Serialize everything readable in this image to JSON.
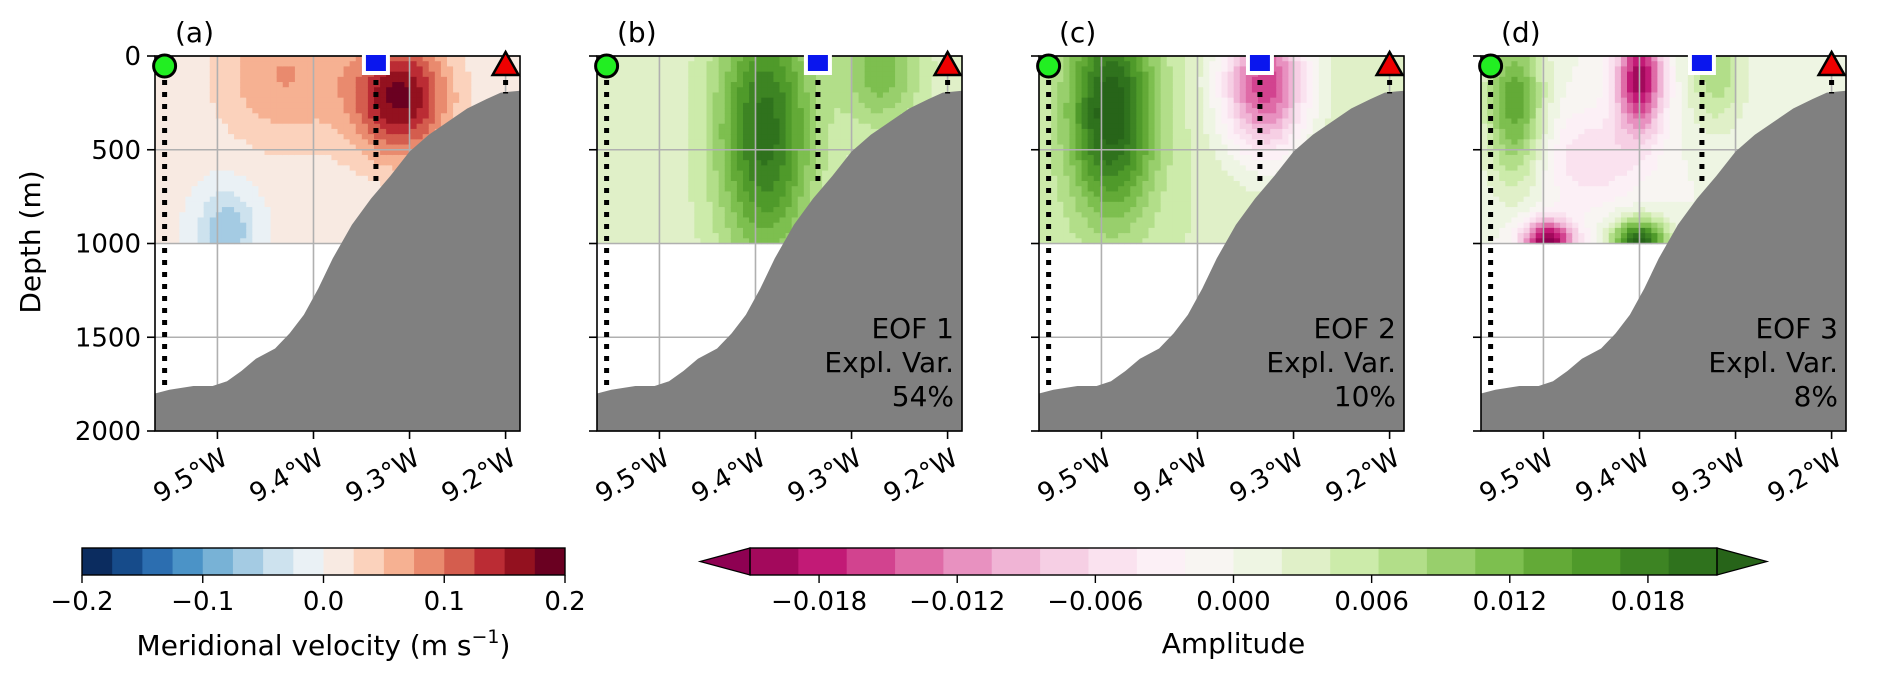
{
  "chart_data": {
    "type": "heatmap",
    "y_axis": {
      "label": "Depth (m)",
      "lim": [
        0,
        2000
      ],
      "inverted": true,
      "ticks": [
        0,
        500,
        1000,
        1500,
        2000
      ],
      "tick_labels": [
        "0",
        "500",
        "1000",
        "1500",
        "2000"
      ]
    },
    "x_axis": {
      "lim_lon": [
        -9.565,
        -9.185
      ],
      "ticks_lon": [
        -9.5,
        -9.4,
        -9.3,
        -9.2
      ],
      "tick_labels": [
        "9.5°W",
        "9.4°W",
        "9.3°W",
        "9.2°W"
      ]
    },
    "grid": true,
    "data_depth_max": 1000,
    "markers": [
      {
        "lon": -9.555,
        "depth": 0,
        "shape": "circle",
        "color": "#22ee22",
        "line_bottom": 1760
      },
      {
        "lon": -9.335,
        "depth": 0,
        "shape": "square",
        "color": "#0a16ee",
        "line_bottom": 700
      },
      {
        "lon": -9.2,
        "depth": 0,
        "shape": "triangle",
        "color": "#ee0000",
        "line_bottom": 200
      }
    ],
    "bathymetry": [
      [
        -9.565,
        1800
      ],
      [
        -9.55,
        1780
      ],
      [
        -9.525,
        1760
      ],
      [
        -9.505,
        1760
      ],
      [
        -9.49,
        1735
      ],
      [
        -9.475,
        1680
      ],
      [
        -9.46,
        1615
      ],
      [
        -9.44,
        1560
      ],
      [
        -9.425,
        1480
      ],
      [
        -9.41,
        1380
      ],
      [
        -9.395,
        1240
      ],
      [
        -9.38,
        1080
      ],
      [
        -9.36,
        900
      ],
      [
        -9.34,
        760
      ],
      [
        -9.32,
        640
      ],
      [
        -9.3,
        510
      ],
      [
        -9.28,
        420
      ],
      [
        -9.26,
        350
      ],
      [
        -9.24,
        280
      ],
      [
        -9.22,
        230
      ],
      [
        -9.205,
        195
      ],
      [
        -9.185,
        185
      ]
    ],
    "panels": [
      {
        "label": "(a)",
        "field": "velocity",
        "ridges": [
          {
            "lon": -9.31,
            "depth": 220,
            "amp": 0.175,
            "sx": 0.05,
            "sy": 320
          },
          {
            "lon": -9.43,
            "depth": 100,
            "amp": 0.07,
            "sx": 0.07,
            "sy": 380
          },
          {
            "lon": -9.49,
            "depth": 940,
            "amp": -0.08,
            "sx": 0.03,
            "sy": 230
          }
        ],
        "base": 0.006
      },
      {
        "label": "(b)",
        "field": "eof",
        "title": "EOF 1",
        "var_label": "Expl. Var.",
        "var_value": "54%",
        "ridges": [
          {
            "lon": -9.39,
            "depth": 400,
            "amp": 0.017,
            "sx": 0.05,
            "sy": 700
          },
          {
            "lon": -9.27,
            "depth": 80,
            "amp": 0.009,
            "sx": 0.04,
            "sy": 300
          }
        ],
        "base": 0.003
      },
      {
        "label": "(c)",
        "field": "eof",
        "title": "EOF 2",
        "var_label": "Expl. Var.",
        "var_value": "10%",
        "ridges": [
          {
            "lon": -9.49,
            "depth": 300,
            "amp": 0.019,
            "sx": 0.045,
            "sy": 550
          },
          {
            "lon": -9.33,
            "depth": 150,
            "amp": -0.02,
            "sx": 0.045,
            "sy": 380
          }
        ],
        "base": 0.004
      },
      {
        "label": "(d)",
        "field": "eof",
        "title": "EOF 3",
        "var_label": "Expl. Var.",
        "var_value": "8%",
        "ridges": [
          {
            "lon": -9.53,
            "depth": 250,
            "amp": 0.014,
            "sx": 0.03,
            "sy": 420
          },
          {
            "lon": -9.4,
            "depth": 120,
            "amp": -0.02,
            "sx": 0.025,
            "sy": 300
          },
          {
            "lon": -9.45,
            "depth": 550,
            "amp": -0.006,
            "sx": 0.05,
            "sy": 250
          },
          {
            "lon": -9.495,
            "depth": 990,
            "amp": -0.022,
            "sx": 0.028,
            "sy": 120
          },
          {
            "lon": -9.4,
            "depth": 990,
            "amp": 0.022,
            "sx": 0.028,
            "sy": 120
          },
          {
            "lon": -9.32,
            "depth": 80,
            "amp": 0.008,
            "sx": 0.03,
            "sy": 300
          }
        ],
        "base": 0.0
      }
    ],
    "colorbars": [
      {
        "id": "velocity",
        "label_main": "Meridional velocity (m s",
        "label_sup": "−1",
        "label_end": ")",
        "range": [
          -0.2,
          0.2
        ],
        "levels": 16,
        "extend": "neither",
        "ticks": [
          -0.2,
          -0.1,
          0.0,
          0.1,
          0.2
        ],
        "tick_labels": [
          "−0.2",
          "−0.1",
          "0.0",
          "0.1",
          "0.2"
        ],
        "colors": [
          "#0b2c5f",
          "#164b8a",
          "#2c6eb0",
          "#4b93c7",
          "#78b2d6",
          "#a4cbe3",
          "#cde2ee",
          "#eaf1f5",
          "#f8eae2",
          "#fbd2bc",
          "#f6b192",
          "#e98a6e",
          "#d45d4e",
          "#bb2c34",
          "#93111f",
          "#6a0021"
        ]
      },
      {
        "id": "eof",
        "label": "Amplitude",
        "range": [
          -0.021,
          0.021
        ],
        "levels": 20,
        "extend": "both",
        "ticks": [
          -0.018,
          -0.012,
          -0.006,
          0.0,
          0.006,
          0.012,
          0.018
        ],
        "tick_labels": [
          "−0.018",
          "−0.012",
          "−0.006",
          "0.000",
          "0.006",
          "0.012",
          "0.018"
        ],
        "under_color": "#8e0152",
        "over_color": "#276419",
        "colors": [
          "#a3095c",
          "#c21a76",
          "#d2438f",
          "#df6ba7",
          "#e891c0",
          "#f0b4d5",
          "#f6cfe4",
          "#fae2ef",
          "#fcf0f6",
          "#f8f5f2",
          "#eef5e3",
          "#e0f0c8",
          "#ccebaa",
          "#b2de89",
          "#98cf6c",
          "#7dbf4f",
          "#63aa37",
          "#4f9a2a",
          "#3d8423",
          "#2f721d"
        ]
      }
    ]
  }
}
